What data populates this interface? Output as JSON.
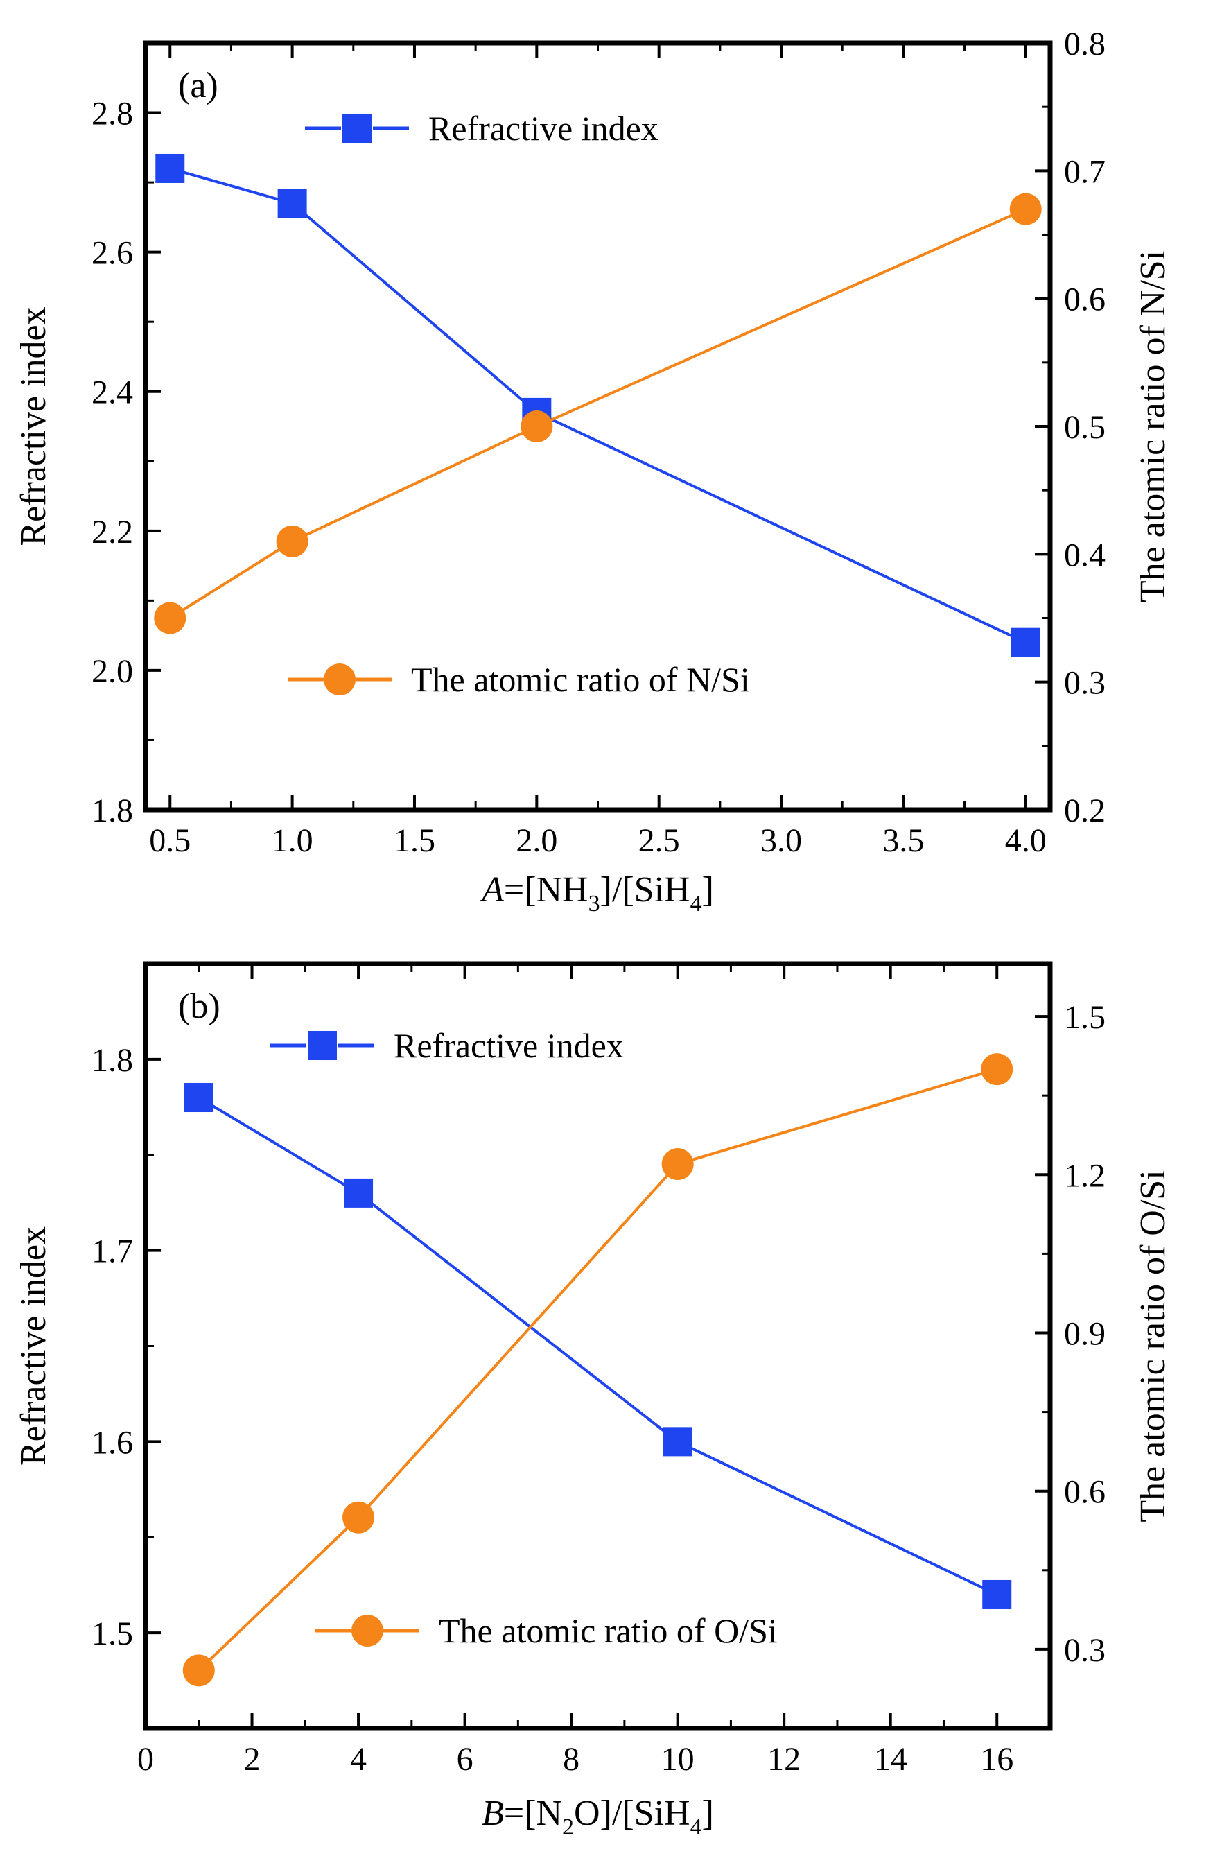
{
  "colors": {
    "refractive": "#1f45f0",
    "ratio": "#f58518",
    "axis": "#000000"
  },
  "chart_data": [
    {
      "type": "line",
      "panel_label": "(a)",
      "xlabel": {
        "italic": "A",
        "rest": "=[NH",
        "sub1": "3",
        "mid": "]/[SiH",
        "sub2": "4",
        "end": "]"
      },
      "ylabel_left": "Refractive index",
      "ylabel_right": "The atomic ratio of N/Si",
      "xlim": [
        0.4,
        4.1
      ],
      "ylim_left": [
        1.8,
        2.9
      ],
      "ylim_right": [
        0.2,
        0.8
      ],
      "xticks": [
        "0.5",
        "1.0",
        "1.5",
        "2.0",
        "2.5",
        "3.0",
        "3.5",
        "4.0"
      ],
      "yticks_left": [
        "1.8",
        "2.0",
        "2.2",
        "2.4",
        "2.6",
        "2.8"
      ],
      "yticks_right": [
        "0.2",
        "0.3",
        "0.4",
        "0.5",
        "0.6",
        "0.7",
        "0.8"
      ],
      "x": [
        0.5,
        1.0,
        2.0,
        4.0
      ],
      "series": [
        {
          "name": "Refractive index",
          "axis": "left",
          "marker": "square",
          "values": [
            2.72,
            2.67,
            2.37,
            2.04
          ]
        },
        {
          "name": "The atomic ratio of N/Si",
          "axis": "right",
          "marker": "circle",
          "values": [
            0.35,
            0.41,
            0.5,
            0.67
          ]
        }
      ],
      "legend": [
        "top-center",
        "bottom-center"
      ]
    },
    {
      "type": "line",
      "panel_label": "(b)",
      "xlabel": {
        "italic": "B",
        "rest": "=[N",
        "sub1": "2",
        "mid": "O]/[SiH",
        "sub2": "4",
        "end": "]"
      },
      "ylabel_left": "Refractive index",
      "ylabel_right": "The atomic ratio of O/Si",
      "xlim": [
        0,
        17
      ],
      "ylim_left": [
        1.45,
        1.85
      ],
      "ylim_right": [
        0.15,
        1.6
      ],
      "xticks": [
        "0",
        "2",
        "4",
        "6",
        "8",
        "10",
        "12",
        "14",
        "16"
      ],
      "yticks_left": [
        "1.5",
        "1.6",
        "1.7",
        "1.8"
      ],
      "yticks_right": [
        "0.3",
        "0.6",
        "0.9",
        "1.2",
        "1.5"
      ],
      "x": [
        1,
        4,
        10,
        16
      ],
      "series": [
        {
          "name": "Refractive index",
          "axis": "left",
          "marker": "square",
          "values": [
            1.78,
            1.73,
            1.6,
            1.52
          ]
        },
        {
          "name": "The atomic ratio of O/Si",
          "axis": "right",
          "marker": "circle",
          "values": [
            0.26,
            0.55,
            1.22,
            1.4
          ]
        }
      ],
      "legend": [
        "top-center",
        "bottom-center"
      ]
    }
  ]
}
